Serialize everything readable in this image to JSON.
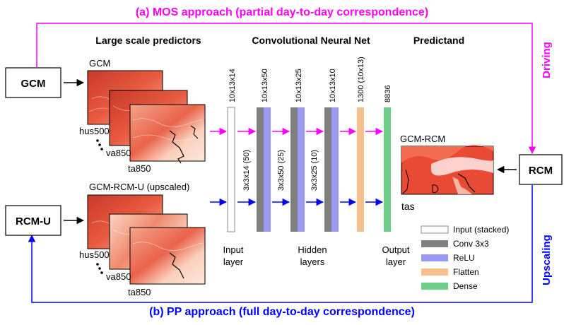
{
  "titles": {
    "mos": "(a) MOS approach (partial day-to-day correspondence)",
    "pp": "(b) PP approach (full day-to-day correspondence)",
    "driving": "Driving",
    "upscaling": "Upscaling"
  },
  "headers": {
    "predictors": "Large scale predictors",
    "cnn": "Convolutional Neural Net",
    "predictand": "Predictand"
  },
  "boxes": {
    "gcm": "GCM",
    "rcm": "RCM",
    "rcmu": "RCM-U"
  },
  "maps": {
    "gcm_label": "GCM",
    "gcmrcmu_label": "GCM-RCM-U (upscaled)",
    "gcmrcm_label": "GCM-RCM",
    "vars_top": [
      "hus500",
      "va850",
      "ta850"
    ],
    "vars_bottom": [
      "hus500",
      "va850",
      "ta850"
    ],
    "tas": "tas"
  },
  "layers": {
    "dims": [
      "10x13x14",
      "10x13x50",
      "10x13x25",
      "10x13x10",
      "1300 (10x13)",
      "8836"
    ],
    "kernels": [
      "3x3x14 (50)",
      "3x3x50 (25)",
      "3x3x25 (10)"
    ],
    "input_label": [
      "Input",
      "layer"
    ],
    "hidden_label": [
      "Hidden",
      "layers"
    ],
    "output_label": [
      "Output",
      "layer"
    ]
  },
  "legend": [
    {
      "label": "Input (stacked)",
      "color": "#ffffff"
    },
    {
      "label": "Conv 3x3",
      "color": "#808080"
    },
    {
      "label": "ReLU",
      "color": "#9a9af5"
    },
    {
      "label": "Flatten",
      "color": "#f8c08c"
    },
    {
      "label": "Dense",
      "color": "#6dcf8a"
    }
  ],
  "colors": {
    "mos": "#ff00ff",
    "pp": "#0000ff",
    "input": "#ffffff",
    "conv": "#808080",
    "relu": "#9a9af5",
    "flatten": "#f8c08c",
    "dense": "#6dcf8a"
  }
}
